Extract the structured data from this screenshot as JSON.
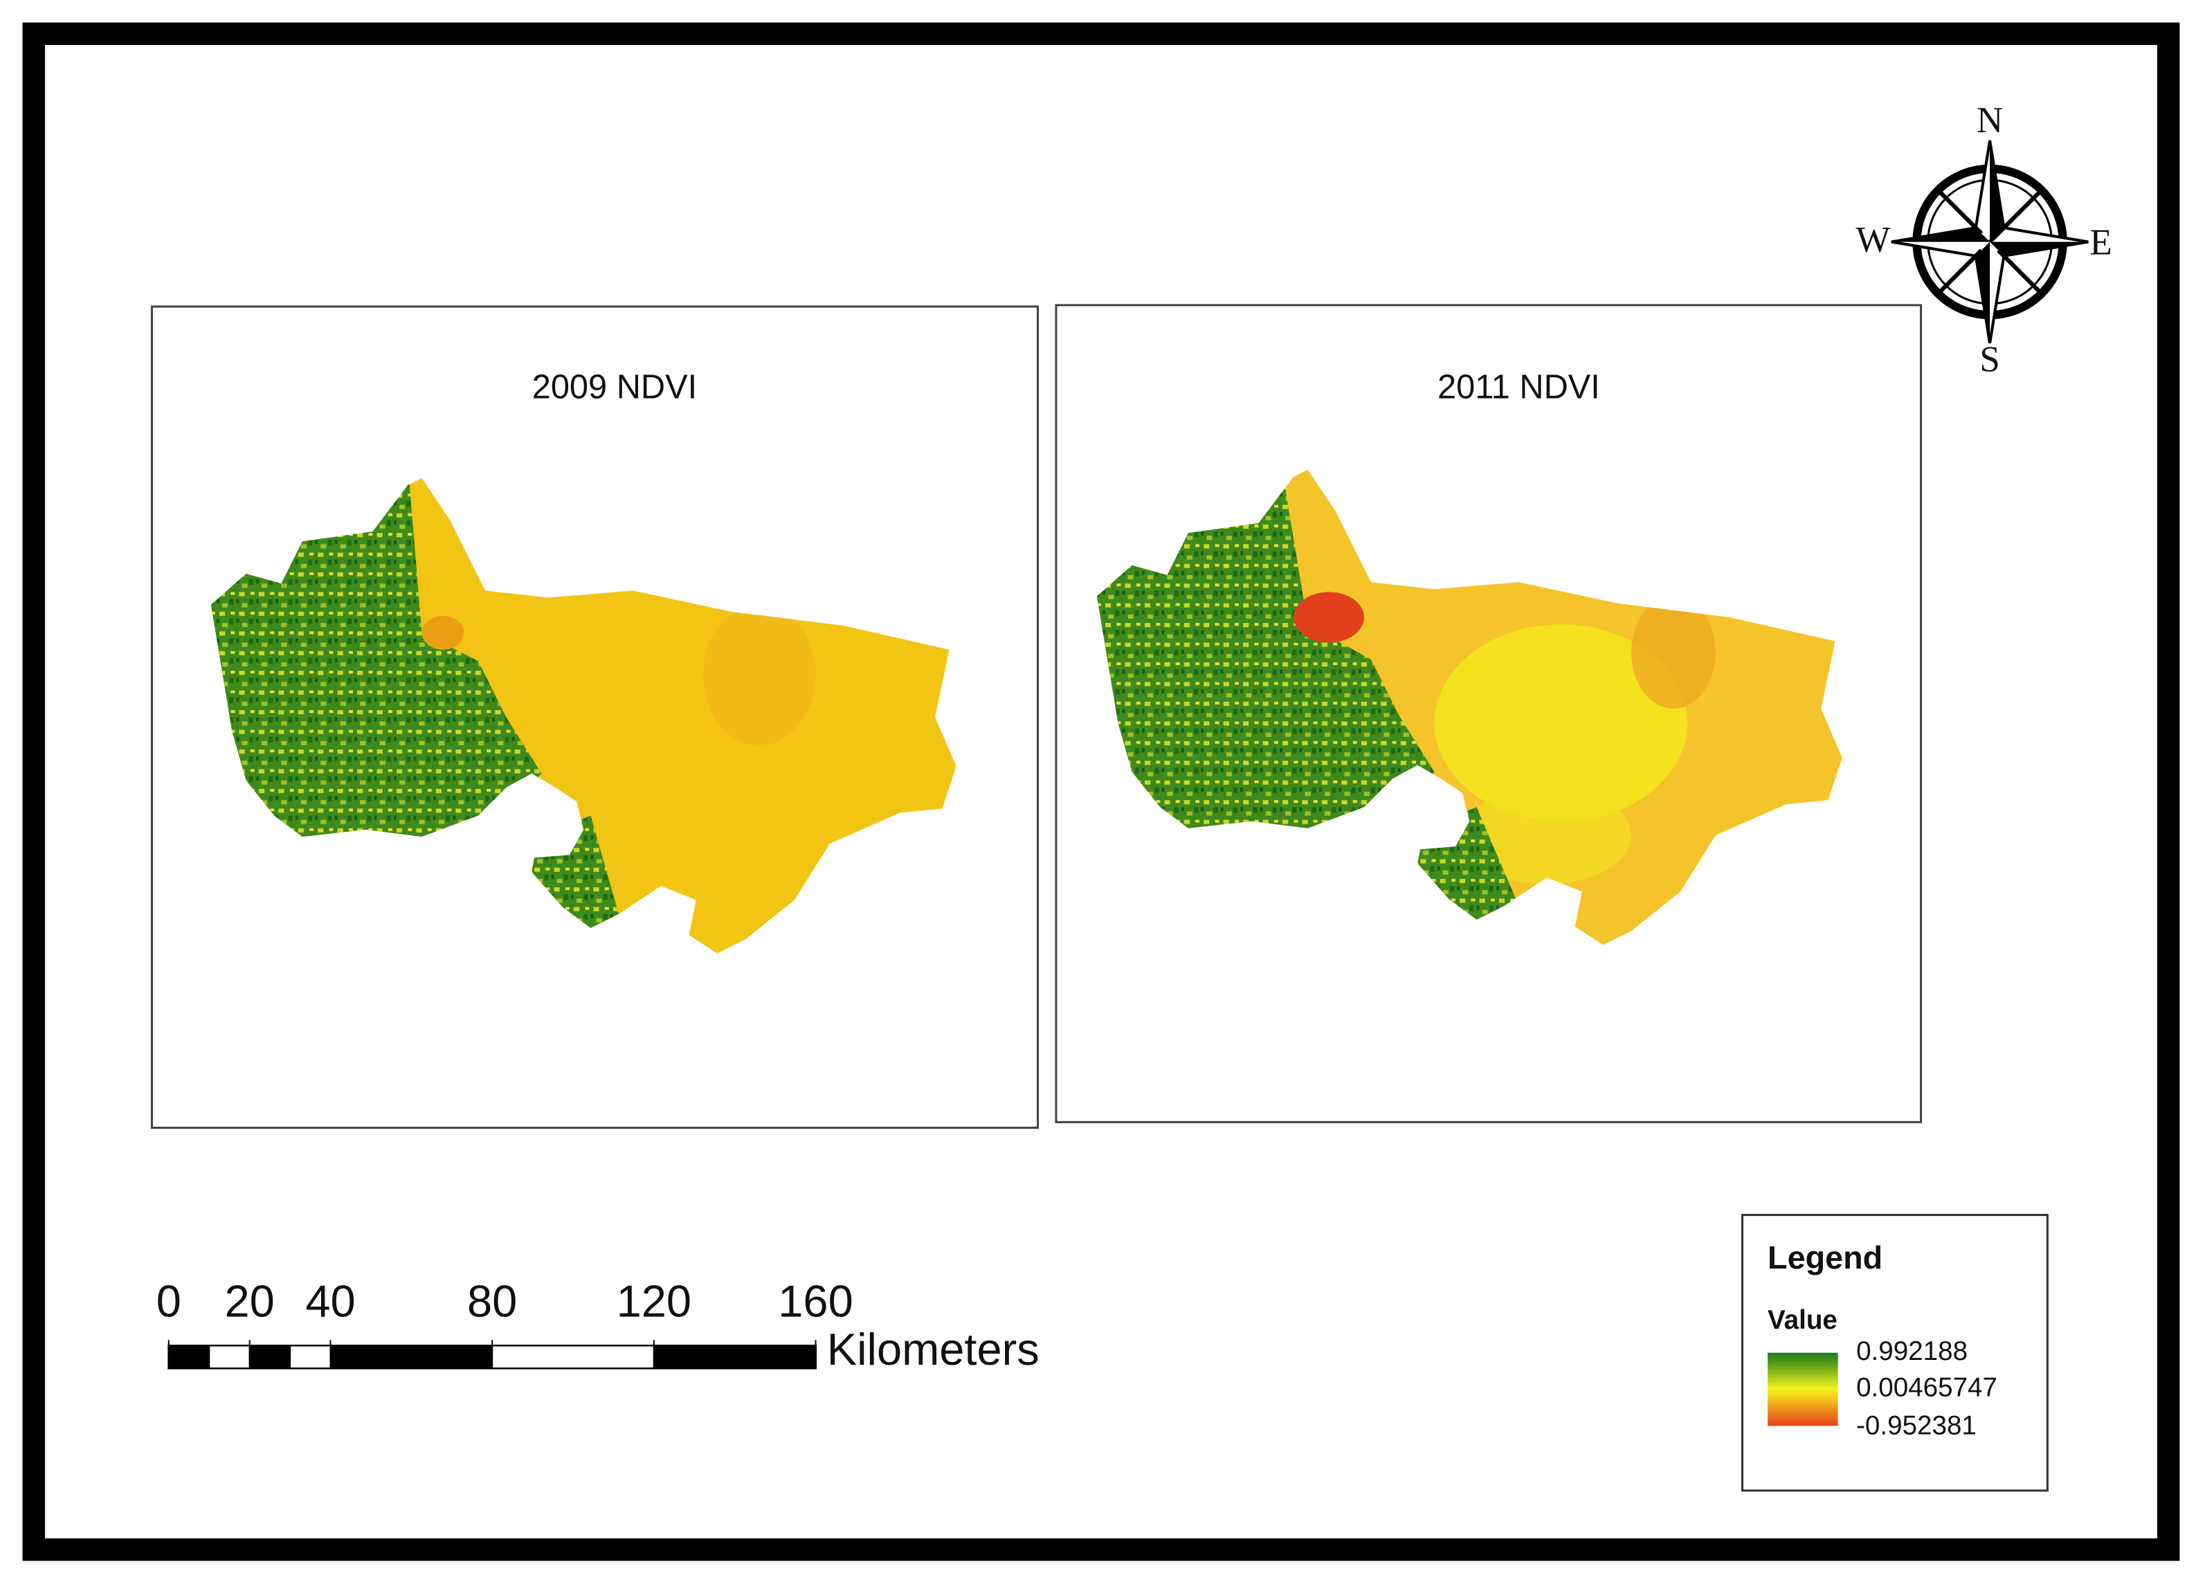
{
  "panels": [
    {
      "title": "2009 NDVI"
    },
    {
      "title": "2011 NDVI"
    }
  ],
  "compass": {
    "north": "N",
    "south": "S",
    "west": "W",
    "east": "E"
  },
  "scale_bar": {
    "ticks": [
      0,
      20,
      40,
      80,
      120,
      160
    ],
    "unit": "Kilometers"
  },
  "legend": {
    "title": "Legend",
    "field": "Value",
    "labels": [
      "0.992188",
      "0.00465747",
      "-0.952381"
    ]
  }
}
